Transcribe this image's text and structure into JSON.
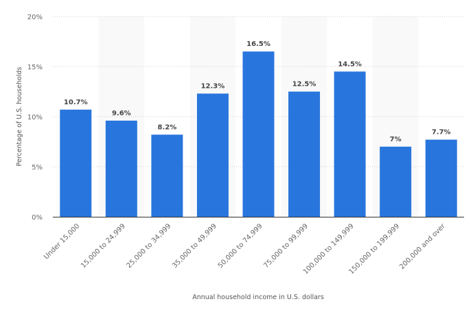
{
  "chart_data": {
    "type": "bar",
    "title": "",
    "xlabel": "Annual household income in U.S. dollars",
    "ylabel": "Percentage of U.S. households",
    "ylim": [
      0,
      20
    ],
    "yticks": [
      0,
      5,
      10,
      15,
      20
    ],
    "ytick_labels": [
      "0%",
      "5%",
      "10%",
      "15%",
      "20%"
    ],
    "grid": true,
    "categories": [
      "Under 15,000",
      "15,000 to 24,999",
      "25,000 to 34,999",
      "35,000 to 49,999",
      "50,000 to 74,999",
      "75,000 to 99,999",
      "100,000 to 149,999",
      "150,000 to 199,999",
      "200,000 and over"
    ],
    "values": [
      10.7,
      9.6,
      8.2,
      12.3,
      16.5,
      12.5,
      14.5,
      7,
      7.7
    ],
    "data_labels": [
      "10.7%",
      "9.6%",
      "8.2%",
      "12.3%",
      "16.5%",
      "12.5%",
      "14.5%",
      "7%",
      "7.7%"
    ],
    "bar_color": "#2876dd",
    "band_color": "#f9f9f9"
  }
}
